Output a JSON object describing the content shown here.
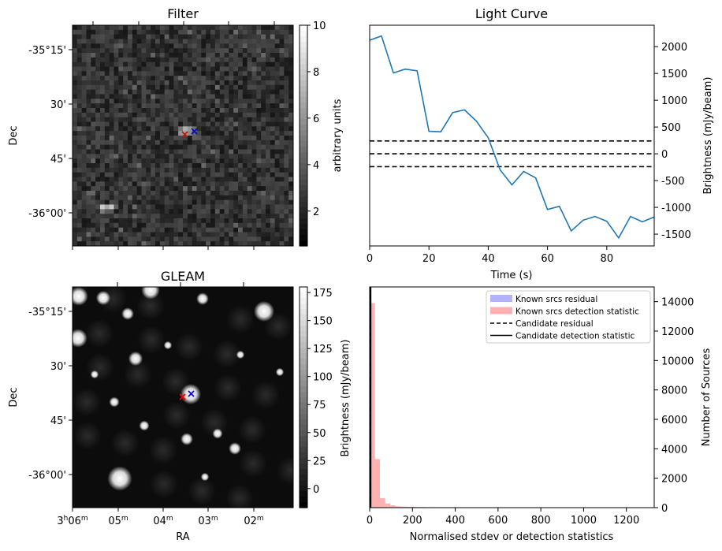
{
  "panels": {
    "filter": {
      "title": "Filter",
      "ylabel": "Dec",
      "yticks": [
        "-35°15'",
        "30'",
        "45'",
        "-36°00'"
      ],
      "colorbar_label": "arbitrary units",
      "colorbar_ticks": [
        "10",
        "8",
        "6",
        "4",
        "2"
      ],
      "colorbar_range": [
        0.5,
        10
      ],
      "colormap": "gray",
      "markers": {
        "red_cross_color": "#e8000b",
        "blue_cross_color": "#0000ee"
      }
    },
    "gleam": {
      "title": "GLEAM",
      "xlabel": "RA",
      "ylabel": "Dec",
      "yticks": [
        "-35°15'",
        "30'",
        "45'",
        "-36°00'"
      ],
      "xticks": [
        {
          "h": "3",
          "hs": "h",
          "m": "06",
          "ms": "m"
        },
        {
          "h": "",
          "hs": "",
          "m": "05",
          "ms": "m"
        },
        {
          "h": "",
          "hs": "",
          "m": "04",
          "ms": "m"
        },
        {
          "h": "",
          "hs": "",
          "m": "03",
          "ms": "m"
        },
        {
          "h": "",
          "hs": "",
          "m": "02",
          "ms": "m"
        }
      ],
      "colorbar_label": "Brightness (mJy/beam)",
      "colorbar_ticks": [
        "175",
        "150",
        "125",
        "100",
        "75",
        "50",
        "25",
        "0"
      ],
      "colorbar_range": [
        -17,
        180
      ],
      "colormap": "gray"
    }
  },
  "chart_data": [
    {
      "type": "line",
      "title": "Light Curve",
      "xlabel": "Time (s)",
      "ylabel": "Brightness (mJy/beam)",
      "xlim": [
        0,
        96
      ],
      "ylim": [
        -1720,
        2400
      ],
      "xticks": [
        0,
        20,
        40,
        60,
        80
      ],
      "yticks": [
        2000,
        1500,
        1000,
        500,
        0,
        -500,
        -1000,
        -1500
      ],
      "yaxis_side": "right",
      "series": [
        {
          "color": "#1f77b4",
          "x": [
            0,
            4,
            8,
            12,
            16,
            20,
            24,
            28,
            32,
            36,
            40,
            44,
            48,
            52,
            56,
            60,
            64,
            68,
            72,
            76,
            80,
            84,
            88,
            92,
            96
          ],
          "y": [
            2120,
            2200,
            1510,
            1580,
            1550,
            420,
            410,
            770,
            820,
            610,
            300,
            -300,
            -580,
            -330,
            -450,
            -1040,
            -980,
            -1440,
            -1240,
            -1170,
            -1260,
            -1570,
            -1170,
            -1270,
            -1180
          ]
        }
      ],
      "hlines": [
        {
          "y": 240,
          "style": "dashed",
          "color": "#000000"
        },
        {
          "y": 0,
          "style": "dashed",
          "color": "#000000"
        },
        {
          "y": -240,
          "style": "dashed",
          "color": "#000000"
        }
      ]
    },
    {
      "type": "bar",
      "xlabel": "Normalised stdev or detection statistics",
      "ylabel": "Number of Sources",
      "xlim": [
        0,
        1330
      ],
      "ylim": [
        0,
        15000
      ],
      "xticks": [
        0,
        200,
        400,
        600,
        800,
        1000,
        1200
      ],
      "yticks": [
        0,
        2000,
        4000,
        6000,
        8000,
        10000,
        12000,
        14000
      ],
      "yaxis_side": "right",
      "bin_width": 24,
      "legend": {
        "placement": "upper right",
        "entries": [
          {
            "label": "Known srcs residual",
            "kind": "patch",
            "color": "#b2b2ff"
          },
          {
            "label": "Known srcs detection statistic",
            "kind": "patch",
            "color": "#ffb0b0"
          },
          {
            "label": "Candidate residual",
            "kind": "dashed",
            "color": "#000000"
          },
          {
            "label": "Candidate detection statistic",
            "kind": "solid",
            "color": "#000000"
          }
        ]
      },
      "series": [
        {
          "name": "Known srcs detection statistic",
          "color": "#ffb0b0",
          "bins": [
            0,
            24,
            48,
            72,
            96,
            120,
            144,
            168,
            192,
            216,
            240,
            264,
            288,
            312,
            336,
            360,
            384,
            408,
            432,
            456,
            480,
            504,
            528,
            552,
            576,
            768
          ],
          "values": [
            13900,
            3300,
            650,
            280,
            160,
            90,
            70,
            60,
            50,
            40,
            40,
            30,
            30,
            30,
            25,
            25,
            20,
            20,
            20,
            20,
            15,
            15,
            15,
            15,
            15,
            10
          ]
        }
      ],
      "vlines": [
        {
          "x": 2,
          "style": "dashed",
          "color": "#000000"
        },
        {
          "x": 5,
          "style": "solid",
          "color": "#000000"
        }
      ]
    }
  ]
}
